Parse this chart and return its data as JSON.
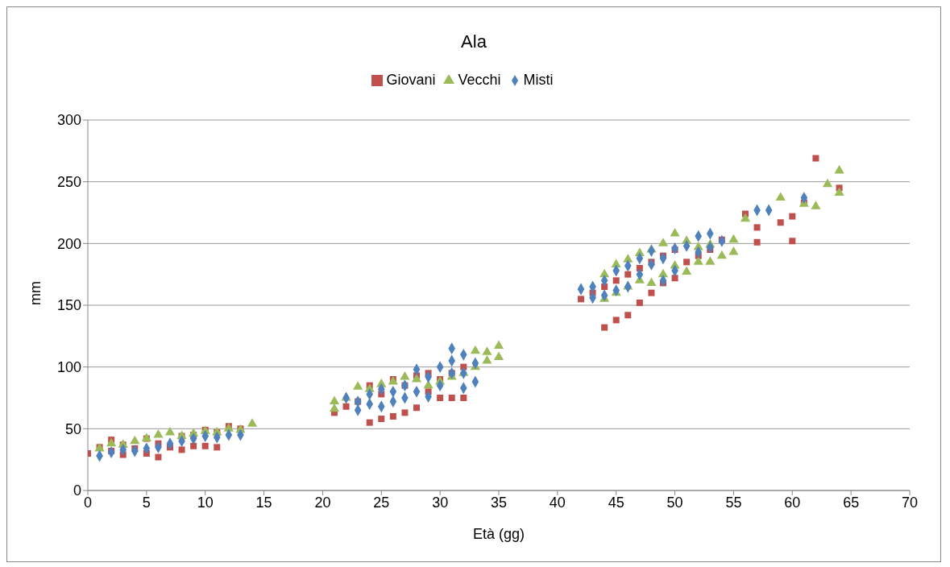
{
  "chart_data": {
    "type": "scatter",
    "title": "Ala",
    "xlabel": "Età (gg)",
    "ylabel": "mm",
    "xlim": [
      0,
      70
    ],
    "xticks": [
      0,
      5,
      10,
      15,
      20,
      25,
      30,
      35,
      40,
      45,
      50,
      55,
      60,
      65,
      70
    ],
    "ylim": [
      0,
      300
    ],
    "yticks": [
      0,
      50,
      100,
      150,
      200,
      250,
      300
    ],
    "grid": "y",
    "legend": "top",
    "series": [
      {
        "name": "Giovani",
        "color": "#c0504d",
        "marker": "square",
        "x": [
          0,
          1,
          2,
          2,
          3,
          3,
          4,
          5,
          5,
          6,
          6,
          7,
          8,
          8,
          9,
          9,
          10,
          10,
          11,
          11,
          12,
          13,
          21,
          22,
          23,
          24,
          24,
          25,
          25,
          26,
          26,
          27,
          27,
          28,
          28,
          29,
          29,
          30,
          30,
          31,
          31,
          32,
          32,
          42,
          43,
          44,
          44,
          45,
          45,
          46,
          46,
          47,
          47,
          48,
          48,
          49,
          49,
          50,
          50,
          51,
          52,
          53,
          54,
          56,
          57,
          57,
          59,
          60,
          60,
          61,
          62,
          64
        ],
        "values": [
          30,
          35,
          41,
          32,
          29,
          37,
          34,
          42,
          30,
          27,
          38,
          35,
          33,
          44,
          45,
          36,
          49,
          36,
          35,
          47,
          52,
          50,
          63,
          68,
          72,
          55,
          85,
          58,
          78,
          60,
          90,
          63,
          85,
          67,
          93,
          95,
          80,
          75,
          90,
          75,
          95,
          75,
          100,
          155,
          160,
          132,
          165,
          138,
          170,
          142,
          175,
          152,
          180,
          160,
          185,
          168,
          190,
          172,
          195,
          185,
          190,
          195,
          203,
          224,
          213,
          201,
          217,
          222,
          202,
          233,
          269,
          245
        ]
      },
      {
        "name": "Vecchi",
        "color": "#9bbb59",
        "marker": "triangle",
        "x": [
          1,
          2,
          3,
          4,
          5,
          6,
          7,
          8,
          9,
          10,
          11,
          12,
          13,
          14,
          21,
          21,
          22,
          23,
          24,
          25,
          26,
          27,
          28,
          29,
          30,
          31,
          32,
          33,
          33,
          34,
          34,
          35,
          35,
          44,
          44,
          45,
          45,
          46,
          46,
          47,
          47,
          48,
          48,
          49,
          49,
          50,
          50,
          51,
          51,
          52,
          52,
          53,
          53,
          54,
          55,
          55,
          56,
          59,
          61,
          62,
          63,
          64,
          64
        ],
        "values": [
          34,
          38,
          37,
          40,
          42,
          45,
          47,
          44,
          46,
          48,
          47,
          50,
          49,
          54,
          72,
          66,
          75,
          84,
          82,
          86,
          88,
          92,
          90,
          85,
          88,
          92,
          95,
          113,
          100,
          112,
          105,
          117,
          108,
          175,
          155,
          183,
          160,
          187,
          165,
          192,
          170,
          195,
          168,
          200,
          175,
          208,
          182,
          202,
          177,
          197,
          185,
          199,
          185,
          190,
          203,
          193,
          220,
          237,
          232,
          230,
          248,
          259,
          241
        ]
      },
      {
        "name": "Misti",
        "color": "#4f81bd",
        "marker": "diamond",
        "x": [
          1,
          2,
          3,
          4,
          5,
          6,
          7,
          8,
          9,
          10,
          11,
          12,
          13,
          22,
          23,
          23,
          24,
          24,
          25,
          25,
          26,
          26,
          27,
          27,
          28,
          28,
          29,
          29,
          30,
          30,
          31,
          31,
          31,
          32,
          32,
          32,
          33,
          33,
          42,
          43,
          43,
          44,
          44,
          45,
          45,
          46,
          46,
          47,
          47,
          48,
          48,
          49,
          49,
          50,
          50,
          51,
          52,
          52,
          53,
          53,
          54,
          57,
          58,
          61
        ],
        "values": [
          28,
          31,
          33,
          32,
          34,
          35,
          38,
          40,
          42,
          44,
          43,
          45,
          45,
          75,
          65,
          72,
          70,
          78,
          68,
          82,
          72,
          80,
          75,
          85,
          80,
          98,
          76,
          92,
          85,
          100,
          115,
          105,
          95,
          110,
          95,
          83,
          103,
          88,
          163,
          165,
          156,
          170,
          158,
          178,
          162,
          182,
          165,
          188,
          175,
          194,
          183,
          188,
          170,
          196,
          178,
          198,
          206,
          193,
          208,
          197,
          202,
          227,
          227,
          237
        ]
      }
    ]
  }
}
